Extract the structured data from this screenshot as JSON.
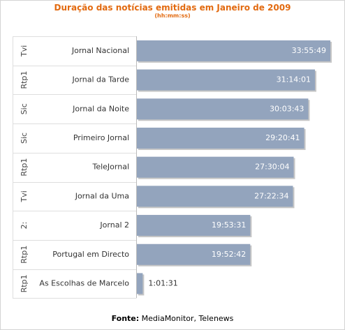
{
  "chart_data": {
    "type": "bar",
    "orientation": "horizontal",
    "title": "Duração das notícias emitidas em Janeiro de 2009",
    "subtitle": "(hh:mm:ss)",
    "groups": [
      "Tvi",
      "Rtp1",
      "Sic",
      "Sic",
      "Rtp1",
      "Tvi",
      "2:",
      "Rtp1",
      "Rtp1"
    ],
    "categories": [
      "Jornal Nacional",
      "Jornal da Tarde",
      "Jornal da Noite",
      "Primeiro Jornal",
      "TeleJornal",
      "Jornal da Uma",
      "Jornal 2",
      "Portugal em Directo",
      "As Escolhas de Marcelo"
    ],
    "labels": [
      "33:55:49",
      "31:14:01",
      "30:03:43",
      "29:20:41",
      "27:30:04",
      "27:22:34",
      "19:53:31",
      "19:52:42",
      "1:01:31"
    ],
    "values": [
      122149,
      112441,
      108223,
      105641,
      99004,
      98554,
      71611,
      71562,
      3691
    ],
    "value_unit": "seconds",
    "xlim": [
      0,
      122149
    ],
    "grid": false,
    "legend": "none",
    "colors": {
      "bar": "#93a4bd",
      "bar_shadow": "#c6c6c6",
      "title": "#e26a10",
      "divider": "#dedede"
    }
  },
  "source": {
    "label": "Fonte:",
    "text": "MediaMonitor, Telenews"
  }
}
